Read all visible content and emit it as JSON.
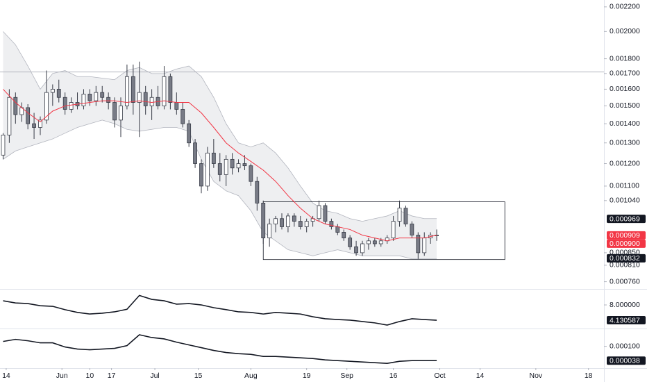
{
  "chart_data": [
    {
      "type": "candlestick",
      "log_scale": true,
      "x": [
        "05-13",
        "05-15",
        "05-17",
        "05-19",
        "05-21",
        "05-23",
        "05-25",
        "05-27",
        "05-29",
        "05-31",
        "06-02",
        "06-04",
        "06-06",
        "06-08",
        "06-10",
        "06-12",
        "06-14",
        "06-16",
        "06-18",
        "06-20",
        "06-22",
        "06-24",
        "06-26",
        "06-28",
        "06-30",
        "07-02",
        "07-04",
        "07-06",
        "07-08",
        "07-10",
        "07-12",
        "07-14",
        "07-16",
        "07-18",
        "07-20",
        "07-22",
        "07-24",
        "07-26",
        "07-28",
        "07-30",
        "08-01",
        "08-03",
        "08-05",
        "08-07",
        "08-09",
        "08-11",
        "08-13",
        "08-15",
        "08-17",
        "08-19",
        "08-21",
        "08-23",
        "08-25",
        "08-27",
        "08-29",
        "08-31",
        "09-02",
        "09-04",
        "09-06",
        "09-08",
        "09-10",
        "09-12",
        "09-14",
        "09-16",
        "09-18",
        "09-20",
        "09-22",
        "09-24",
        "09-26",
        "09-28",
        "09-30"
      ],
      "open": [
        0.00124,
        0.00134,
        0.00155,
        0.00145,
        0.00149,
        0.0014,
        0.00138,
        0.00142,
        0.00158,
        0.0016,
        0.00155,
        0.00148,
        0.00152,
        0.0015,
        0.00157,
        0.00153,
        0.00158,
        0.00155,
        0.00152,
        0.00142,
        0.0015,
        0.00168,
        0.00152,
        0.00158,
        0.0015,
        0.00155,
        0.0015,
        0.00168,
        0.00152,
        0.00148,
        0.0014,
        0.0013,
        0.0012,
        0.0011,
        0.00125,
        0.0012,
        0.00115,
        0.00122,
        0.00118,
        0.0012,
        0.00119,
        0.00112,
        0.00103,
        0.0009,
        0.00095,
        0.00097,
        0.00094,
        0.00098,
        0.00096,
        0.00094,
        0.00096,
        0.00097,
        0.00102,
        0.00096,
        0.00094,
        0.00092,
        0.0009,
        0.00087,
        0.00085,
        0.00088,
        0.00089,
        0.00088,
        0.00089,
        0.0009,
        0.00096,
        0.00101,
        0.00095,
        0.00091,
        0.00085,
        0.0009,
        0.00091
      ],
      "high": [
        0.00135,
        0.0016,
        0.00158,
        0.00152,
        0.00151,
        0.00146,
        0.00144,
        0.00172,
        0.00163,
        0.00166,
        0.00158,
        0.00155,
        0.00158,
        0.0016,
        0.0016,
        0.00162,
        0.00162,
        0.00158,
        0.00155,
        0.00155,
        0.00176,
        0.00176,
        0.00178,
        0.00162,
        0.0016,
        0.00162,
        0.00175,
        0.0017,
        0.00158,
        0.00152,
        0.00142,
        0.00132,
        0.00122,
        0.00128,
        0.00132,
        0.00125,
        0.00124,
        0.00125,
        0.00122,
        0.00124,
        0.0012,
        0.00114,
        0.00104,
        0.00097,
        0.00098,
        0.00099,
        0.00099,
        0.00099,
        0.00098,
        0.00097,
        0.00098,
        0.00104,
        0.00103,
        0.00097,
        0.00095,
        0.00093,
        0.00091,
        0.00089,
        0.00089,
        0.0009,
        0.0009,
        0.0009,
        0.00091,
        0.00098,
        0.00104,
        0.00102,
        0.00096,
        0.00092,
        0.00092,
        0.00092,
        0.00093
      ],
      "low": [
        0.00122,
        0.0013,
        0.0014,
        0.00141,
        0.00137,
        0.00132,
        0.00134,
        0.0014,
        0.0015,
        0.00152,
        0.00145,
        0.00146,
        0.00148,
        0.00148,
        0.0015,
        0.0015,
        0.00152,
        0.00148,
        0.00138,
        0.00133,
        0.00148,
        0.00145,
        0.00133,
        0.00145,
        0.00142,
        0.00148,
        0.00148,
        0.00148,
        0.00145,
        0.00138,
        0.00128,
        0.00118,
        0.00107,
        0.00108,
        0.00118,
        0.00112,
        0.0011,
        0.00115,
        0.00116,
        0.00117,
        0.0011,
        0.001,
        0.00088,
        0.00087,
        0.00092,
        0.00093,
        0.00092,
        0.00094,
        0.00093,
        0.00092,
        0.00094,
        0.00096,
        0.00095,
        0.00093,
        0.00091,
        0.00089,
        0.00086,
        0.00084,
        0.00084,
        0.00086,
        0.00087,
        0.00087,
        0.00088,
        0.00089,
        0.00094,
        0.00094,
        0.0009,
        0.00083,
        0.00084,
        0.00088,
        0.00089
      ],
      "close": [
        0.00134,
        0.00155,
        0.00145,
        0.00149,
        0.0014,
        0.00138,
        0.00142,
        0.00158,
        0.0016,
        0.00155,
        0.00148,
        0.00152,
        0.0015,
        0.00157,
        0.00153,
        0.00158,
        0.00155,
        0.00152,
        0.00142,
        0.0015,
        0.00168,
        0.00152,
        0.00158,
        0.0015,
        0.00155,
        0.0015,
        0.00168,
        0.00152,
        0.00148,
        0.0014,
        0.0013,
        0.0012,
        0.0011,
        0.00125,
        0.0012,
        0.00115,
        0.00122,
        0.00118,
        0.0012,
        0.00119,
        0.00112,
        0.00103,
        0.0009,
        0.00095,
        0.00097,
        0.00094,
        0.00098,
        0.00096,
        0.00094,
        0.00096,
        0.00097,
        0.00102,
        0.00096,
        0.00094,
        0.00092,
        0.0009,
        0.00087,
        0.00085,
        0.00088,
        0.00089,
        0.00088,
        0.00089,
        0.0009,
        0.00096,
        0.00101,
        0.00095,
        0.00091,
        0.00085,
        0.0009,
        0.00091,
        0.00091
      ],
      "up_color": "#ffffff",
      "down_color": "#787b86",
      "candle_border": "#363a45",
      "indicator_x": [
        "05-13",
        "05-17",
        "05-21",
        "05-25",
        "05-29",
        "06-02",
        "06-06",
        "06-10",
        "06-14",
        "06-18",
        "06-22",
        "06-26",
        "06-30",
        "07-04",
        "07-08",
        "07-12",
        "07-16",
        "07-20",
        "07-24",
        "07-28",
        "08-01",
        "08-05",
        "08-09",
        "08-13",
        "08-17",
        "08-21",
        "08-25",
        "08-29",
        "09-02",
        "09-06",
        "09-10",
        "09-14",
        "09-18",
        "09-22",
        "09-26",
        "09-30"
      ],
      "band": {
        "color": "#b2b5be",
        "upper": [
          0.002,
          0.0019,
          0.00175,
          0.0016,
          0.0017,
          0.00172,
          0.00168,
          0.00168,
          0.00167,
          0.00166,
          0.00172,
          0.00174,
          0.0017,
          0.0017,
          0.00173,
          0.00175,
          0.00168,
          0.00155,
          0.0014,
          0.0013,
          0.00128,
          0.0013,
          0.00125,
          0.00118,
          0.0011,
          0.00103,
          0.001,
          0.00099,
          0.00097,
          0.00096,
          0.00097,
          0.00098,
          0.001,
          0.00098,
          0.00097,
          0.00097
        ],
        "lower": [
          0.00122,
          0.00126,
          0.00128,
          0.0013,
          0.00132,
          0.00135,
          0.00138,
          0.0014,
          0.00142,
          0.0014,
          0.00137,
          0.00136,
          0.00137,
          0.00138,
          0.00138,
          0.00136,
          0.00122,
          0.00112,
          0.00108,
          0.00106,
          0.001,
          0.00092,
          0.00089,
          0.00086,
          0.00085,
          0.00084,
          0.00085,
          0.00086,
          0.00085,
          0.00084,
          0.00084,
          0.00084,
          0.00084,
          0.00083,
          0.00083,
          0.00083
        ]
      },
      "lines": [
        {
          "color": "#f23645",
          "values": [
            0.0016,
            0.00152,
            0.00146,
            0.00141,
            0.00147,
            0.0015,
            0.00151,
            0.00152,
            0.00153,
            0.00153,
            0.00152,
            0.00153,
            0.00152,
            0.00153,
            0.00152,
            0.00152,
            0.00146,
            0.00138,
            0.0013,
            0.00125,
            0.00121,
            0.00117,
            0.00112,
            0.00106,
            0.00101,
            0.00097,
            0.00095,
            0.00094,
            0.00093,
            0.00091,
            0.0009,
            0.00089,
            0.0009,
            0.0009,
            0.0009,
            0.00091
          ]
        }
      ],
      "hline": {
        "value": 0.00171,
        "color": "#b2b5be"
      },
      "rectangle": {
        "x": [
          "08-05",
          "10-22"
        ],
        "y": [
          0.001035,
          0.000828
        ],
        "color": "#131722"
      },
      "ylim": [
        0.000745,
        0.002247
      ],
      "yticks": [
        {
          "value": 0.0022,
          "label": "0.002200"
        },
        {
          "value": 0.002,
          "label": "0.002000"
        },
        {
          "value": 0.0018,
          "label": "0.001800"
        },
        {
          "value": 0.0017,
          "label": "0.001700"
        },
        {
          "value": 0.0016,
          "label": "0.001600"
        },
        {
          "value": 0.0015,
          "label": "0.001500"
        },
        {
          "value": 0.0014,
          "label": "0.001400"
        },
        {
          "value": 0.0013,
          "label": "0.001300"
        },
        {
          "value": 0.0012,
          "label": "0.001200"
        },
        {
          "value": 0.0011,
          "label": "0.001100"
        },
        {
          "value": 0.00104,
          "label": "0.001040"
        },
        {
          "value": 0.00085,
          "label": "0.000850"
        },
        {
          "value": 0.00081,
          "label": "0.000810"
        },
        {
          "value": 0.00076,
          "label": "0.000760"
        }
      ],
      "price_labels": [
        {
          "value": 0.000969,
          "label": "0.000969",
          "color": "#131722"
        },
        {
          "value": 0.000909,
          "label": "0.000909",
          "color": "#f23645"
        },
        {
          "value": 0.0009,
          "label": "0.000900",
          "color": "#f23645"
        },
        {
          "value": 0.000832,
          "label": "0.000832",
          "color": "#131722"
        }
      ]
    },
    {
      "type": "line",
      "color": "#131722",
      "x": [
        "05-13",
        "05-17",
        "05-21",
        "05-25",
        "05-29",
        "06-02",
        "06-06",
        "06-10",
        "06-14",
        "06-18",
        "06-22",
        "06-26",
        "06-30",
        "07-04",
        "07-08",
        "07-12",
        "07-16",
        "07-20",
        "07-24",
        "07-28",
        "08-01",
        "08-05",
        "08-09",
        "08-13",
        "08-17",
        "08-21",
        "08-25",
        "08-29",
        "09-02",
        "09-06",
        "09-10",
        "09-14",
        "09-18",
        "09-22",
        "09-26",
        "09-30"
      ],
      "values": [
        9.05,
        8.5,
        8.35,
        7.8,
        7.65,
        6.8,
        6.1,
        5.7,
        5.9,
        6.25,
        6.9,
        10.4,
        9.4,
        9.05,
        8.2,
        8.35,
        8.0,
        7.3,
        6.8,
        6.25,
        6.1,
        5.7,
        6.1,
        5.9,
        5.7,
        5.0,
        4.5,
        4.3,
        4.15,
        3.8,
        3.45,
        2.9,
        3.8,
        4.5,
        4.3,
        4.130587
      ],
      "ylim": [
        2.2,
        11.7
      ],
      "yticks": [
        {
          "value": 8,
          "label": "8.000000"
        }
      ],
      "price_labels": [
        {
          "value": 4.130587,
          "label": "4.130587",
          "color": "#131722"
        }
      ]
    },
    {
      "type": "line",
      "color": "#131722",
      "x": [
        "05-13",
        "05-17",
        "05-21",
        "05-25",
        "05-29",
        "06-02",
        "06-06",
        "06-10",
        "06-14",
        "06-18",
        "06-22",
        "06-26",
        "06-30",
        "07-04",
        "07-08",
        "07-12",
        "07-16",
        "07-20",
        "07-24",
        "07-28",
        "08-01",
        "08-05",
        "08-09",
        "08-13",
        "08-17",
        "08-21",
        "08-25",
        "08-29",
        "09-02",
        "09-06",
        "09-10",
        "09-14",
        "09-18",
        "09-22",
        "09-26",
        "09-30"
      ],
      "values": [
        0.000121,
        0.00013,
        0.000124,
        0.000115,
        0.000115,
        9.7e-05,
        8.8e-05,
        8.5e-05,
        8.8e-05,
        9.1e-05,
        0.000103,
        0.00015,
        0.000138,
        0.000132,
        0.000118,
        0.000106,
        9.4e-05,
        8.2e-05,
        7.3e-05,
        6.8e-05,
        6.5e-05,
        5.6e-05,
        5.6e-05,
        5.3e-05,
        5e-05,
        4.7e-05,
        4.1e-05,
        3.8e-05,
        3.5e-05,
        3.2e-05,
        2.9e-05,
        2.6e-05,
        3.5e-05,
        3.8e-05,
        3.8e-05,
        3.8e-05
      ],
      "ylim": [
        8.5e-06,
        0.000171
      ],
      "yticks": [
        {
          "value": 0.0001,
          "label": "0.000100"
        }
      ],
      "price_labels": [
        {
          "value": 3.8e-05,
          "label": "0.000038",
          "color": "#131722"
        }
      ],
      "xlim": [
        "05-12",
        "11-23"
      ],
      "xticks": [
        {
          "value": "05-14",
          "label": "14"
        },
        {
          "value": "06-01",
          "label": "Jun"
        },
        {
          "value": "06-10",
          "label": "10"
        },
        {
          "value": "06-17",
          "label": "17"
        },
        {
          "value": "07-01",
          "label": "Jul"
        },
        {
          "value": "07-15",
          "label": "15"
        },
        {
          "value": "08-01",
          "label": "Aug"
        },
        {
          "value": "08-19",
          "label": "19"
        },
        {
          "value": "09-01",
          "label": "Sep"
        },
        {
          "value": "09-16",
          "label": "16"
        },
        {
          "value": "10-01",
          "label": "Oct"
        },
        {
          "value": "10-14",
          "label": "14"
        },
        {
          "value": "11-01",
          "label": "Nov"
        },
        {
          "value": "11-18",
          "label": "18"
        }
      ]
    }
  ]
}
